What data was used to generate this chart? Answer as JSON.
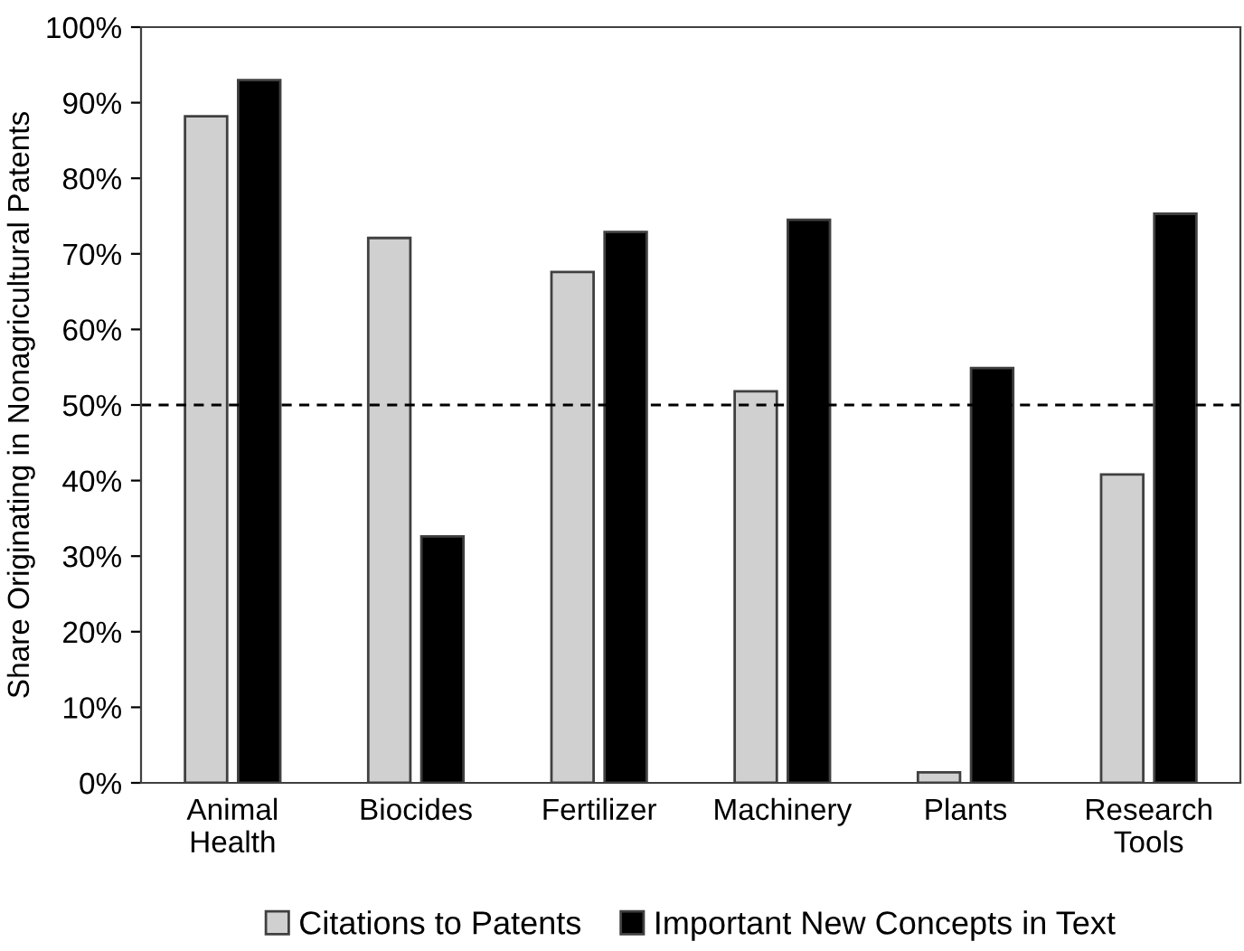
{
  "chart_data": {
    "type": "bar",
    "ylabel": "Share Originating in Nonagricultural Patents",
    "categories": [
      "Animal\nHealth",
      "Biocides",
      "Fertilizer",
      "Machinery",
      "Plants",
      "Research\nTools"
    ],
    "series": [
      {
        "name": "Citations to Patents",
        "color": "#d0d0d0",
        "values": [
          88.2,
          72.1,
          67.6,
          51.8,
          1.4,
          40.8
        ]
      },
      {
        "name": "Important New Concepts in Text",
        "color": "#000000",
        "values": [
          93.0,
          32.6,
          72.9,
          74.5,
          54.9,
          75.3
        ]
      }
    ],
    "ylim": [
      0,
      100
    ],
    "yticks": [
      {
        "value": 0,
        "label": "0%"
      },
      {
        "value": 10,
        "label": "10%"
      },
      {
        "value": 20,
        "label": "20%"
      },
      {
        "value": 30,
        "label": "30%"
      },
      {
        "value": 40,
        "label": "40%"
      },
      {
        "value": 50,
        "label": "50%"
      },
      {
        "value": 60,
        "label": "60%"
      },
      {
        "value": 70,
        "label": "70%"
      },
      {
        "value": 80,
        "label": "80%"
      },
      {
        "value": 90,
        "label": "90%"
      },
      {
        "value": 100,
        "label": "100%"
      }
    ],
    "ref_lines": [
      {
        "axis": "y",
        "value": 50,
        "color": "#000000",
        "line_style": "dashed"
      }
    ],
    "grid": false,
    "legend": "bottom"
  }
}
